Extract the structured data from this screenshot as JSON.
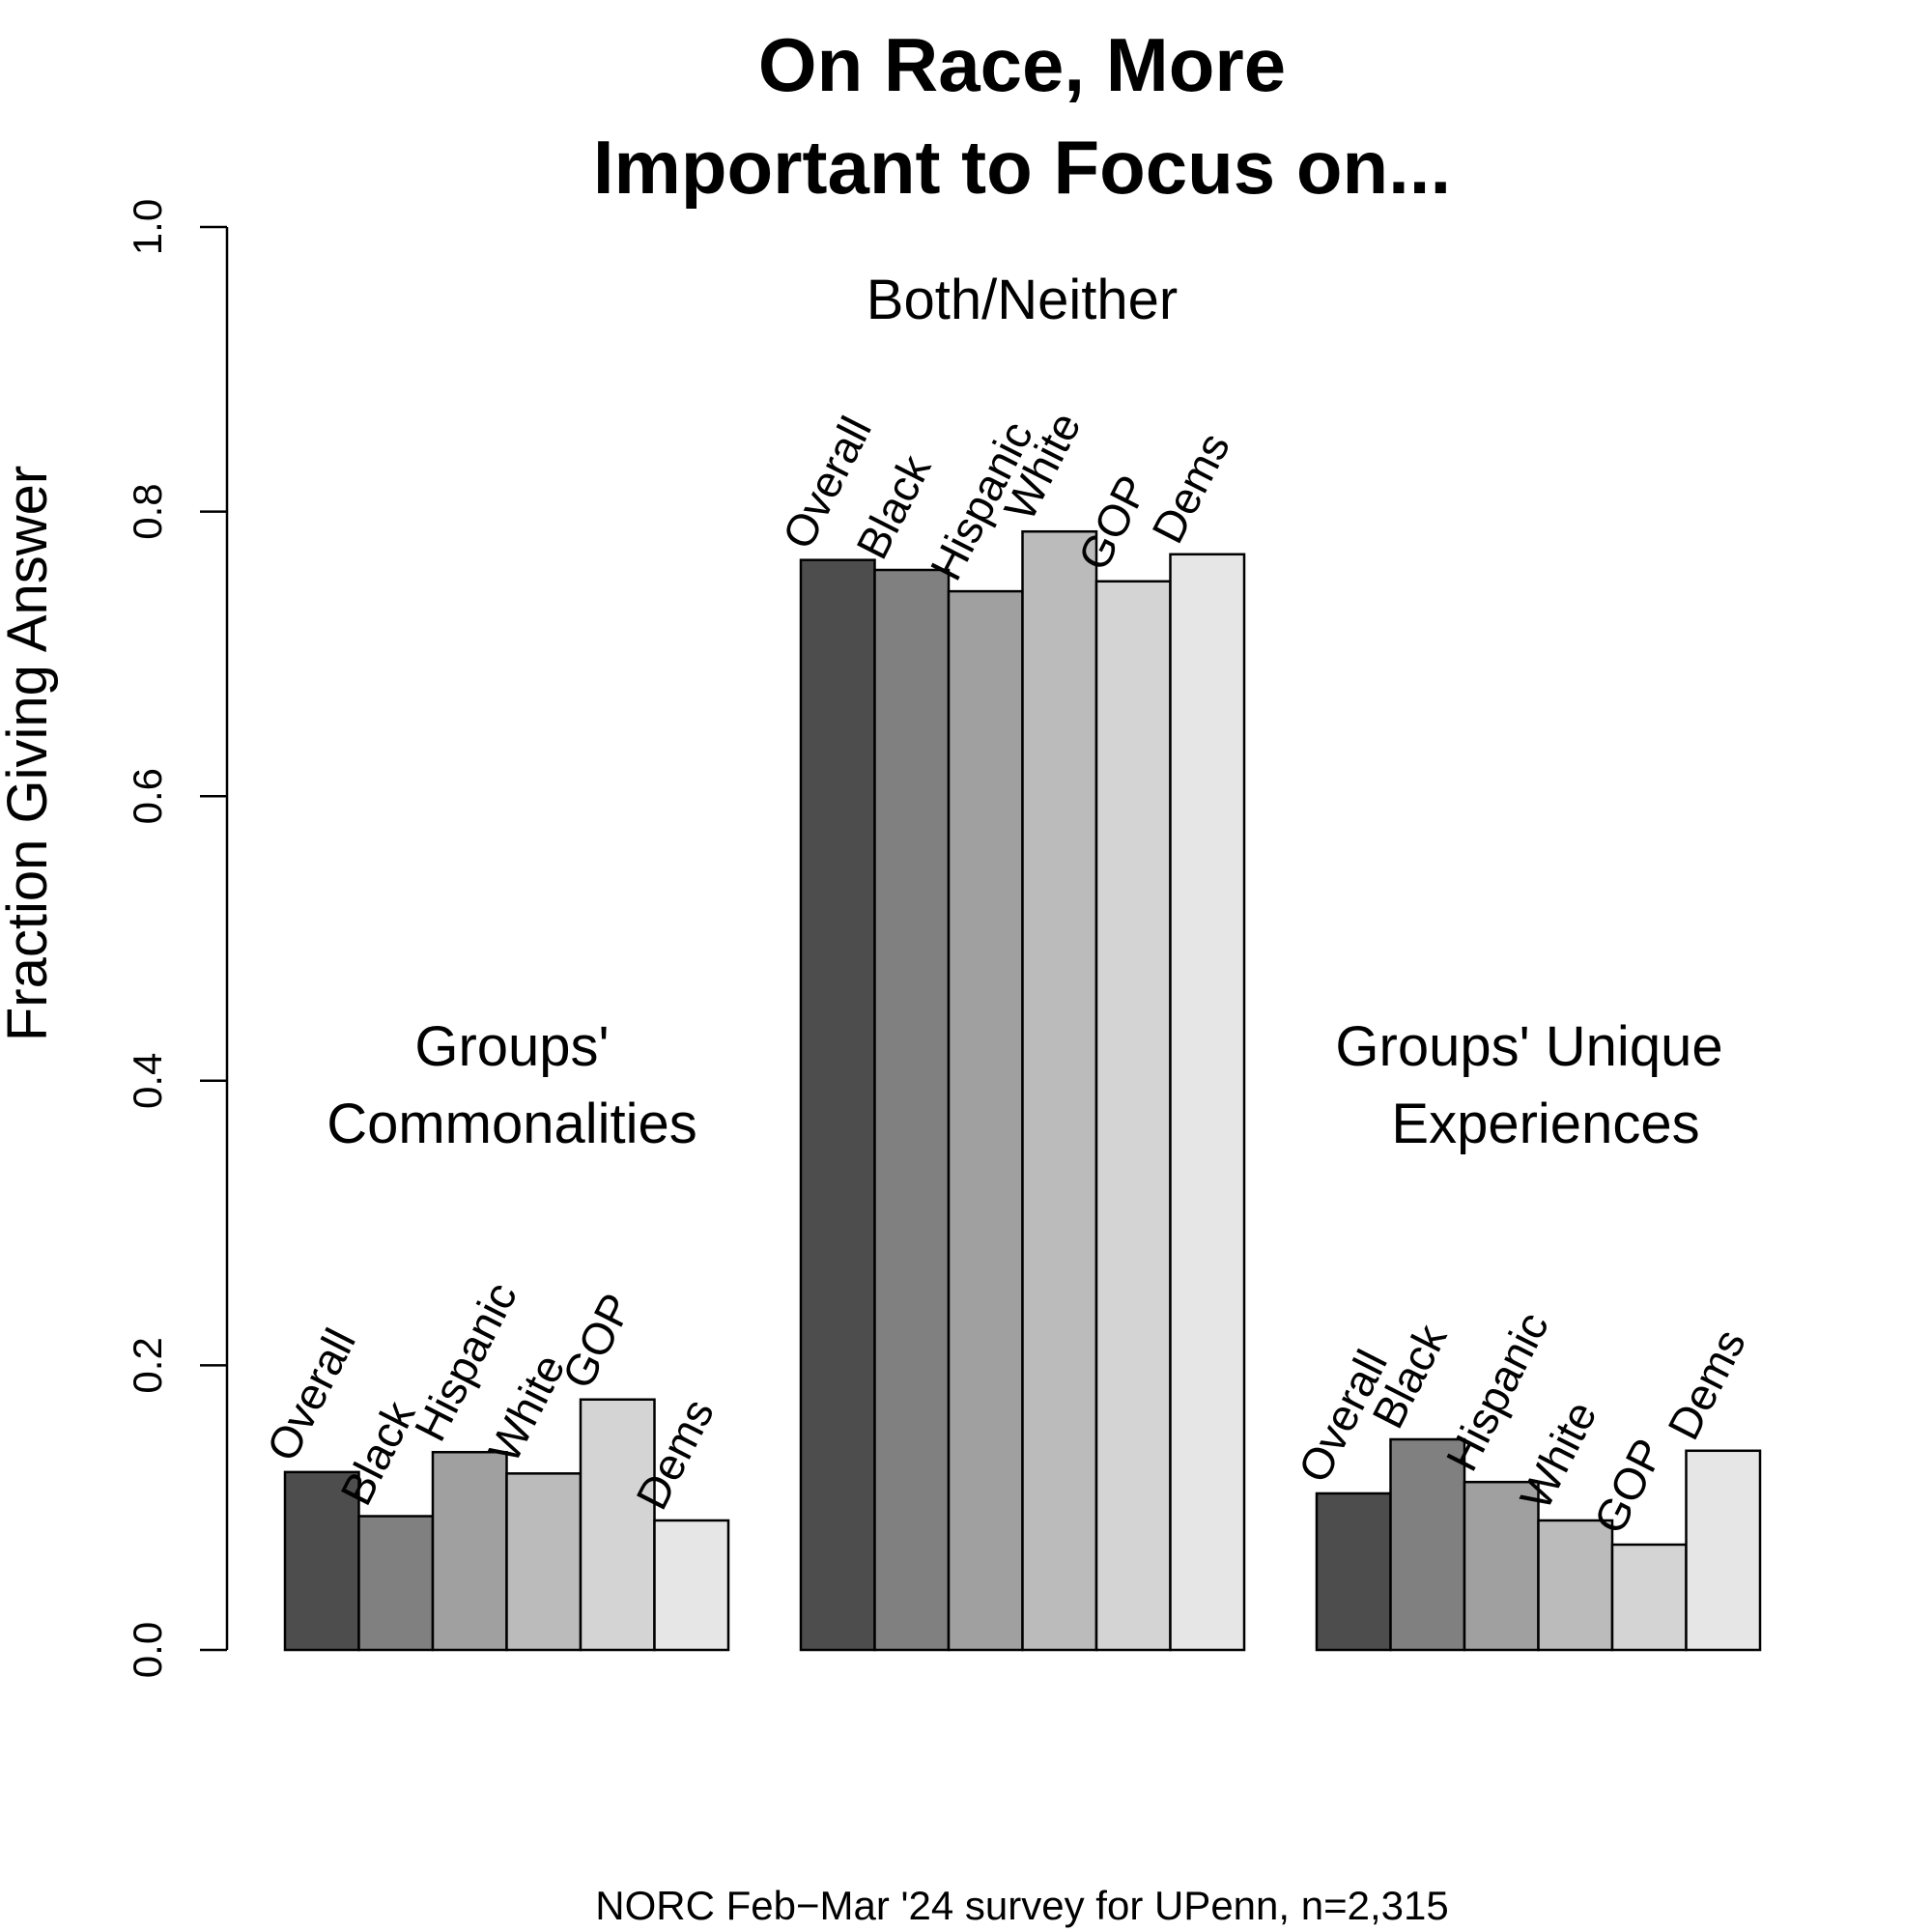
{
  "chart_data": {
    "type": "bar",
    "title_lines": [
      "On Race, More",
      "Important to Focus on..."
    ],
    "ylabel": "Fraction Giving Answer",
    "ylim": [
      0,
      1
    ],
    "yticks": [
      0,
      0.2,
      0.4,
      0.6,
      0.8,
      1
    ],
    "ytick_labels": [
      "0.0",
      "0.2",
      "0.4",
      "0.6",
      "0.8",
      "1.0"
    ],
    "series_names": [
      "Overall",
      "Black",
      "Hispanic",
      "White",
      "GOP",
      "Dems"
    ],
    "series_colors": [
      "#4d4d4d",
      "#808080",
      "#a0a0a0",
      "#bbbbbb",
      "#d4d4d4",
      "#e6e6e6"
    ],
    "groups": [
      {
        "label_lines": [
          "Groups'",
          "Commonalities"
        ],
        "values": [
          0.125,
          0.094,
          0.139,
          0.124,
          0.176,
          0.091
        ]
      },
      {
        "label_lines": [
          "Both/Neither"
        ],
        "values": [
          0.766,
          0.759,
          0.744,
          0.786,
          0.751,
          0.77
        ]
      },
      {
        "label_lines": [
          "Groups' Unique",
          "Experiences"
        ],
        "values": [
          0.11,
          0.148,
          0.118,
          0.091,
          0.074,
          0.14
        ]
      }
    ],
    "caption": "NORC Feb−Mar '24 survey for UPenn, n=2,315"
  }
}
